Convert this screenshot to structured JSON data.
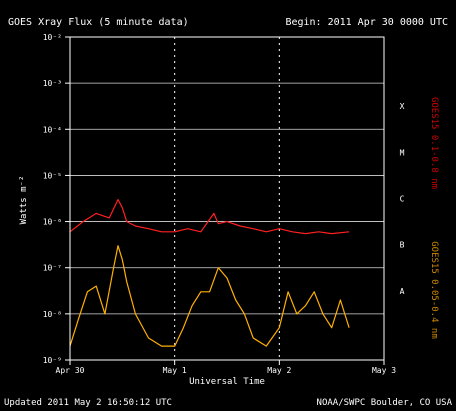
{
  "header": {
    "title": "GOES Xray Flux (5 minute data)",
    "begin": "Begin:  2011 Apr 30 0000 UTC"
  },
  "footer": {
    "updated": "Updated 2011 May  2 16:50:12 UTC",
    "credit": "NOAA/SWPC Boulder, CO USA"
  },
  "colors": {
    "background": "#000000",
    "axes": "#ffffff",
    "grid": "#ffffff",
    "long_channel": "#ff2020",
    "short_channel": "#ffb000",
    "right_label_red": "#cc0000",
    "right_label_gold": "#cc8800"
  },
  "chart_data": {
    "type": "line",
    "title": "GOES Xray Flux (5 minute data)",
    "xlabel": "Universal Time",
    "ylabel": "Watts m⁻²",
    "y_scale": "log",
    "ylim": [
      1e-09,
      0.01
    ],
    "y_ticks": [
      {
        "value": 1e-09,
        "label": "10⁻⁹"
      },
      {
        "value": 1e-08,
        "label": "10⁻⁸"
      },
      {
        "value": 1e-07,
        "label": "10⁻⁷"
      },
      {
        "value": 1e-06,
        "label": "10⁻⁶"
      },
      {
        "value": 1e-05,
        "label": "10⁻⁵"
      },
      {
        "value": 0.0001,
        "label": "10⁻⁴"
      },
      {
        "value": 0.001,
        "label": "10⁻³"
      },
      {
        "value": 0.01,
        "label": "10⁻²"
      }
    ],
    "xlim": [
      "2011-04-30T00:00",
      "2011-05-03T00:00"
    ],
    "x_ticks": [
      {
        "value": "2011-04-30T00:00",
        "label": "Apr 30"
      },
      {
        "value": "2011-05-01T00:00",
        "label": "May 1"
      },
      {
        "value": "2011-05-02T00:00",
        "label": "May 2"
      },
      {
        "value": "2011-05-03T00:00",
        "label": "May 3"
      }
    ],
    "right_axis_letters": [
      "A",
      "B",
      "C",
      "M",
      "X"
    ],
    "right_axis_letter_levels": [
      1e-08,
      1e-07,
      1e-06,
      1e-05,
      0.0001
    ],
    "right_labels": [
      "GOES15 0.1-0.8 nm",
      "GOES15 0.05-0.4 nm"
    ],
    "grid": true,
    "series": [
      {
        "channel": "long",
        "x": [
          "2011-04-30T00:00",
          "2011-04-30T03:00",
          "2011-04-30T06:00",
          "2011-04-30T09:00",
          "2011-04-30T11:00",
          "2011-04-30T12:00",
          "2011-04-30T13:00",
          "2011-04-30T15:00",
          "2011-04-30T18:00",
          "2011-04-30T21:00",
          "2011-05-01T00:00",
          "2011-05-01T03:00",
          "2011-05-01T06:00",
          "2011-05-01T09:00",
          "2011-05-01T10:00",
          "2011-05-01T12:00",
          "2011-05-01T15:00",
          "2011-05-01T18:00",
          "2011-05-01T21:00",
          "2011-05-02T00:00",
          "2011-05-02T03:00",
          "2011-05-02T06:00",
          "2011-05-02T09:00",
          "2011-05-02T12:00",
          "2011-05-02T16:00"
        ],
        "y": [
          6e-07,
          1e-06,
          1.5e-06,
          1.2e-06,
          3e-06,
          2e-06,
          1e-06,
          8e-07,
          7e-07,
          6e-07,
          6e-07,
          7e-07,
          6e-07,
          1.5e-06,
          9e-07,
          1e-06,
          8e-07,
          7e-07,
          6e-07,
          7e-07,
          6e-07,
          5.5e-07,
          6e-07,
          5.5e-07,
          6e-07
        ]
      },
      {
        "channel": "short",
        "x": [
          "2011-04-30T00:00",
          "2011-04-30T02:00",
          "2011-04-30T04:00",
          "2011-04-30T06:00",
          "2011-04-30T08:00",
          "2011-04-30T10:00",
          "2011-04-30T11:00",
          "2011-04-30T12:00",
          "2011-04-30T13:00",
          "2011-04-30T15:00",
          "2011-04-30T18:00",
          "2011-04-30T21:00",
          "2011-05-01T00:00",
          "2011-05-01T02:00",
          "2011-05-01T04:00",
          "2011-05-01T06:00",
          "2011-05-01T08:00",
          "2011-05-01T10:00",
          "2011-05-01T12:00",
          "2011-05-01T14:00",
          "2011-05-01T16:00",
          "2011-05-01T18:00",
          "2011-05-01T21:00",
          "2011-05-02T00:00",
          "2011-05-02T02:00",
          "2011-05-02T04:00",
          "2011-05-02T06:00",
          "2011-05-02T08:00",
          "2011-05-02T10:00",
          "2011-05-02T12:00",
          "2011-05-02T14:00",
          "2011-05-02T16:00"
        ],
        "y": [
          2e-09,
          8e-09,
          3e-08,
          4e-08,
          1e-08,
          1e-07,
          3e-07,
          1.5e-07,
          5e-08,
          1e-08,
          3e-09,
          2e-09,
          2e-09,
          5e-09,
          1.5e-08,
          3e-08,
          3e-08,
          1e-07,
          6e-08,
          2e-08,
          1e-08,
          3e-09,
          2e-09,
          5e-09,
          3e-08,
          1e-08,
          1.5e-08,
          3e-08,
          1e-08,
          5e-09,
          2e-08,
          5e-09
        ]
      }
    ]
  }
}
